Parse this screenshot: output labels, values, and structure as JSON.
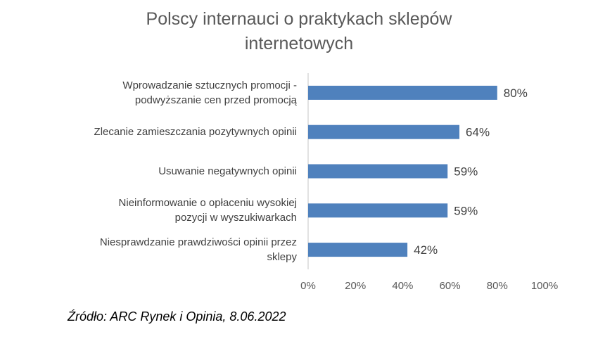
{
  "chart_data": {
    "type": "bar",
    "orientation": "horizontal",
    "title": [
      "Polscy internauci o praktykach sklepów",
      "internetowych"
    ],
    "categories": [
      [
        "Wprowadzanie sztucznych promocji -",
        "podwyższanie cen przed promocją"
      ],
      [
        "Zlecanie zamieszczania pozytywnych opinii"
      ],
      [
        "Usuwanie negatywnych opinii"
      ],
      [
        "Nieinformowanie o opłaceniu wysokiej",
        "pozycji w wyszukiwarkach"
      ],
      [
        "Niesprawdzanie prawdziwości opinii przez",
        "sklepy"
      ]
    ],
    "values": [
      80,
      64,
      59,
      59,
      42
    ],
    "value_labels": [
      "80%",
      "64%",
      "59%",
      "59%",
      "42%"
    ],
    "xlim": [
      0,
      100
    ],
    "x_ticks": [
      "0%",
      "20%",
      "40%",
      "60%",
      "80%",
      "100%"
    ],
    "grid": false,
    "legend": "none",
    "bar_color": "#4F81BD"
  },
  "source": "Źródło: ARC Rynek i Opinia, 8.06.2022"
}
